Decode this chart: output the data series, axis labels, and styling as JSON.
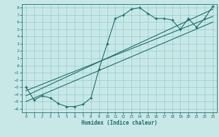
{
  "title": "",
  "xlabel": "Humidex (Indice chaleur)",
  "bg_color": "#c8e8e8",
  "grid_color": "#9ecece",
  "line_color": "#1a6b6b",
  "xlim": [
    -0.5,
    23.5
  ],
  "ylim": [
    -6.5,
    8.5
  ],
  "xticks": [
    0,
    1,
    2,
    3,
    4,
    5,
    6,
    7,
    8,
    9,
    10,
    11,
    12,
    13,
    14,
    15,
    16,
    17,
    18,
    19,
    20,
    21,
    22,
    23
  ],
  "yticks": [
    -6,
    -5,
    -4,
    -3,
    -2,
    -1,
    0,
    1,
    2,
    3,
    4,
    5,
    6,
    7,
    8
  ],
  "data_x": [
    0,
    1,
    2,
    3,
    4,
    5,
    6,
    7,
    8,
    9,
    10,
    11,
    12,
    13,
    14,
    15,
    16,
    17,
    18,
    19,
    20,
    21,
    22,
    23
  ],
  "data_y": [
    -3.0,
    -4.8,
    -4.2,
    -4.5,
    -5.3,
    -5.7,
    -5.7,
    -5.4,
    -4.5,
    -0.5,
    3.0,
    6.5,
    7.0,
    7.8,
    8.0,
    7.2,
    6.5,
    6.5,
    6.3,
    5.0,
    6.5,
    5.3,
    6.5,
    8.2
  ],
  "line1_x": [
    0,
    23
  ],
  "line1_y": [
    -3.5,
    6.8
  ],
  "line2_x": [
    0,
    23
  ],
  "line2_y": [
    -4.2,
    7.8
  ],
  "line3_x": [
    0,
    23
  ],
  "line3_y": [
    -5.0,
    6.0
  ]
}
